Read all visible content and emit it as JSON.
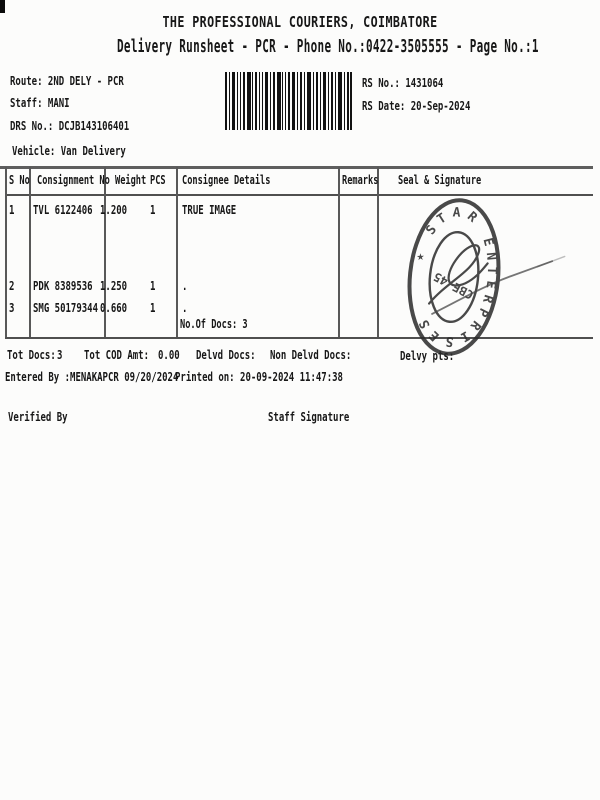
{
  "doc": {
    "title": "THE PROFESSIONAL COURIERS, COIMBATORE",
    "subtitle": "Delivery Runsheet - PCR - Phone No.:0422-3505555 - Page No.:1"
  },
  "info": {
    "route": "Route: 2ND DELY - PCR",
    "staff": "Staff: MANI",
    "drs_no": "DRS No.: DCJB143106401",
    "vehicle": "Vehicle: Van Delivery",
    "rs_no": "RS No.: 1431064",
    "rs_date": "RS Date: 20-Sep-2024"
  },
  "table": {
    "headers": {
      "s_no": "S No",
      "consignment_no": "Consignment No",
      "weight": "Weight",
      "pcs": "PCS",
      "consignee": "Consignee Details",
      "remarks": "Remarks",
      "seal": "Seal & Signature"
    },
    "rows": [
      {
        "s_no": "1",
        "consignment_no": "TVL 6122406",
        "weight": "1.200",
        "pcs": "1",
        "consignee": "TRUE IMAGE"
      },
      {
        "s_no": "2",
        "consignment_no": "PDK 8389536",
        "weight": "1.250",
        "pcs": "1",
        "consignee": "."
      },
      {
        "s_no": "3",
        "consignment_no": "SMG 50179344",
        "weight": "0.660",
        "pcs": "1",
        "consignee": "."
      }
    ],
    "no_of_docs": "No.Of Docs: 3"
  },
  "totals": {
    "tot_docs_label": "Tot Docs:",
    "tot_docs_value": "3",
    "tot_cod_amt_label": "Tot COD Amt:",
    "tot_cod_amt_value": "0.00",
    "delvd_docs_label": "Delvd Docs:",
    "non_delvd_docs_label": "Non Delvd Docs:",
    "delvy_pts_label": "Delvy pts:"
  },
  "footer": {
    "entered_by": "Entered By :MENAKAPCR 09/20/2024",
    "printed_on": "Printed on: 20-09-2024 11:47:38",
    "verified_by": "Verified By",
    "staff_signature": "Staff Signature"
  },
  "stamp": {
    "ring_text": "★ STAR ENTERPRISES",
    "center_text": "CBE 45"
  },
  "colors": {
    "ink": "#171717",
    "line": "#4f4f4f",
    "stamp": "#2a2a2a"
  }
}
